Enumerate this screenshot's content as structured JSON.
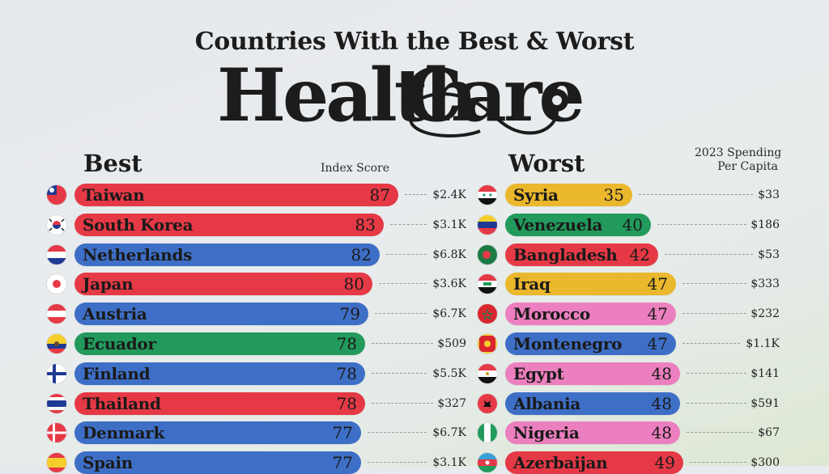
{
  "header": {
    "subtitle": "Countries With the Best & Worst",
    "title_part1": "Health",
    "title_part2": "Care"
  },
  "best": {
    "heading": "Best",
    "column_label": "Index Score"
  },
  "worst": {
    "heading": "Worst",
    "column_label_line1": "2023 Spending",
    "column_label_line2": "Per Capita"
  },
  "colors": {
    "red": "#e63946",
    "blue": "#3e6fc7",
    "green": "#229a5c",
    "yellow": "#ebb72c",
    "pink": "#ec7fbf"
  },
  "chart_data": [
    {
      "type": "bar",
      "title": "Best",
      "value_label": "Index Score",
      "secondary_label": "",
      "categories": [
        "Taiwan",
        "South Korea",
        "Netherlands",
        "Japan",
        "Austria",
        "Ecuador",
        "Finland",
        "Thailand",
        "Denmark",
        "Spain"
      ],
      "values": [
        87,
        83,
        82,
        80,
        79,
        78,
        78,
        78,
        77,
        77
      ],
      "spending": [
        "$2.4K",
        "$3.1K",
        "$6.8K",
        "$3.6K",
        "$6.7K",
        "$509",
        "$5.5K",
        "$327",
        "$6.7K",
        "$3.1K"
      ],
      "bar_colors": [
        "#e63946",
        "#e63946",
        "#3e6fc7",
        "#e63946",
        "#3e6fc7",
        "#229a5c",
        "#3e6fc7",
        "#e63946",
        "#3e6fc7",
        "#3e6fc7"
      ],
      "flags": [
        "taiwan-flag-icon",
        "south-korea-flag-icon",
        "netherlands-flag-icon",
        "japan-flag-icon",
        "austria-flag-icon",
        "ecuador-flag-icon",
        "finland-flag-icon",
        "thailand-flag-icon",
        "denmark-flag-icon",
        "spain-flag-icon"
      ]
    },
    {
      "type": "bar",
      "title": "Worst",
      "value_label": "",
      "secondary_label": "2023 Spending Per Capita",
      "categories": [
        "Syria",
        "Venezuela",
        "Bangladesh",
        "Iraq",
        "Morocco",
        "Montenegro",
        "Egypt",
        "Albania",
        "Nigeria",
        "Azerbaijan"
      ],
      "values": [
        35,
        40,
        42,
        47,
        47,
        47,
        48,
        48,
        48,
        49
      ],
      "spending": [
        "$33",
        "$186",
        "$53",
        "$333",
        "$232",
        "$1.1K",
        "$141",
        "$591",
        "$67",
        "$300"
      ],
      "bar_colors": [
        "#ebb72c",
        "#229a5c",
        "#e63946",
        "#ebb72c",
        "#ec7fbf",
        "#3e6fc7",
        "#ec7fbf",
        "#3e6fc7",
        "#ec7fbf",
        "#e63946"
      ],
      "flags": [
        "syria-flag-icon",
        "venezuela-flag-icon",
        "bangladesh-flag-icon",
        "iraq-flag-icon",
        "morocco-flag-icon",
        "montenegro-flag-icon",
        "egypt-flag-icon",
        "albania-flag-icon",
        "nigeria-flag-icon",
        "azerbaijan-flag-icon"
      ]
    }
  ]
}
